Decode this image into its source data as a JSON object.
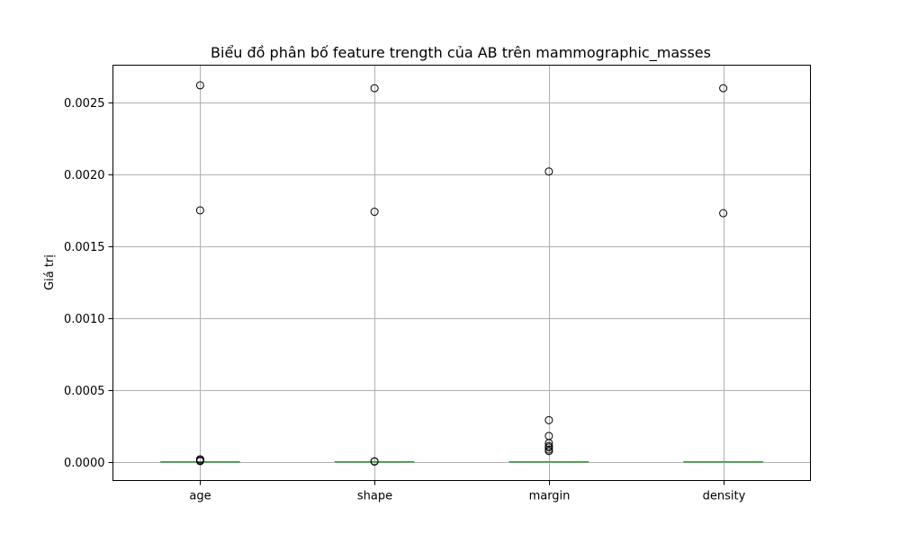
{
  "chart_data": {
    "type": "boxplot",
    "title": "Biểu đồ phân bố feature trength của AB trên mammographic_masses",
    "xlabel": "",
    "ylabel": "Giá trị",
    "categories": [
      "age",
      "shape",
      "margin",
      "density"
    ],
    "ylim": [
      -0.00013,
      0.00276
    ],
    "yticks": [
      0.0,
      0.0005,
      0.001,
      0.0015,
      0.002,
      0.0025
    ],
    "ytick_labels": [
      "0.0000",
      "0.0005",
      "0.0010",
      "0.0015",
      "0.0020",
      "0.0025"
    ],
    "grid": true,
    "legend": "none",
    "series": [
      {
        "category": "age",
        "q1": 0.0,
        "median": 0.0,
        "q3": 0.0,
        "whisker_low": 0.0,
        "whisker_high": 0.0,
        "outliers": [
          0.00262,
          0.00175,
          1.8e-05,
          1e-05,
          5e-06
        ]
      },
      {
        "category": "shape",
        "q1": 0.0,
        "median": 0.0,
        "q3": 0.0,
        "whisker_low": 0.0,
        "whisker_high": 0.0,
        "outliers": [
          0.0026,
          0.00174,
          4e-06,
          2e-06
        ]
      },
      {
        "category": "margin",
        "q1": 0.0,
        "median": 0.0,
        "q3": 0.0,
        "whisker_low": 0.0,
        "whisker_high": 0.0,
        "outliers": [
          0.00202,
          0.00029,
          0.00018,
          0.00013,
          0.00011,
          0.0001,
          8.5e-05,
          7.5e-05
        ]
      },
      {
        "category": "density",
        "q1": 0.0,
        "median": 0.0,
        "q3": 0.0,
        "whisker_low": 0.0,
        "whisker_high": 0.0,
        "outliers": [
          0.0026,
          0.00173
        ]
      }
    ],
    "colors": {
      "median": "#2ca02c",
      "box": "#4c9dc9",
      "whisker": "#6b9e5e",
      "grid": "#b0b0b0",
      "outlier_edge": "#000000",
      "axes": "#000000"
    }
  }
}
